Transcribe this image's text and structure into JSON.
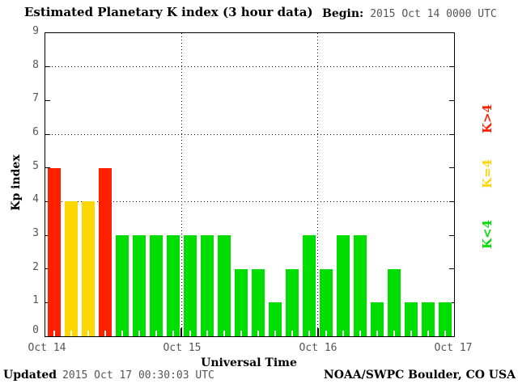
{
  "header": {
    "title": "Estimated Planetary K index (3 hour data)",
    "begin_label": "Begin:",
    "begin_value": "2015 Oct 14 0000 UTC"
  },
  "footer": {
    "updated_label": "Updated",
    "updated_value": "2015 Oct 17 00:30:03 UTC",
    "credit": "NOAA/SWPC Boulder, CO USA"
  },
  "chart_data": {
    "type": "bar",
    "title": "Estimated Planetary K index (3 hour data)",
    "xlabel": "Universal Time",
    "ylabel": "Kp index",
    "ylim": [
      0,
      9
    ],
    "y_ticks": [
      0,
      1,
      2,
      3,
      4,
      5,
      6,
      7,
      8,
      9
    ],
    "dotted_hgrid_at": [
      4,
      6,
      8
    ],
    "hours_per_bar": 3,
    "x_tick_labels": [
      "Oct 14",
      "Oct 15",
      "Oct 16",
      "Oct 17"
    ],
    "days": [
      {
        "date": "Oct 14",
        "values": [
          5,
          4,
          4,
          5,
          3,
          3,
          3,
          3
        ]
      },
      {
        "date": "Oct 15",
        "values": [
          3,
          3,
          3,
          2,
          2,
          1,
          2,
          3
        ]
      },
      {
        "date": "Oct 16",
        "values": [
          2,
          3,
          3,
          1,
          2,
          1,
          1,
          1
        ]
      }
    ],
    "values": [
      5,
      4,
      4,
      5,
      3,
      3,
      3,
      3,
      3,
      3,
      3,
      2,
      2,
      1,
      2,
      3,
      2,
      3,
      3,
      1,
      2,
      1,
      1,
      1
    ],
    "color_rule": "red if K>4, yellow if K=4, green if K<4",
    "colors": {
      "k_gt_4": "#ff2000",
      "k_eq_4": "#ffd700",
      "k_lt_4": "#00dd00"
    },
    "legend": [
      {
        "label": "K>4",
        "color": "#ff2000"
      },
      {
        "label": "K=4",
        "color": "#ffd700"
      },
      {
        "label": "K<4",
        "color": "#00dd00"
      }
    ],
    "legend_position": "right",
    "grid": "dotted horizontal lines at K=4,6,8; dotted vertical lines at day boundaries"
  }
}
